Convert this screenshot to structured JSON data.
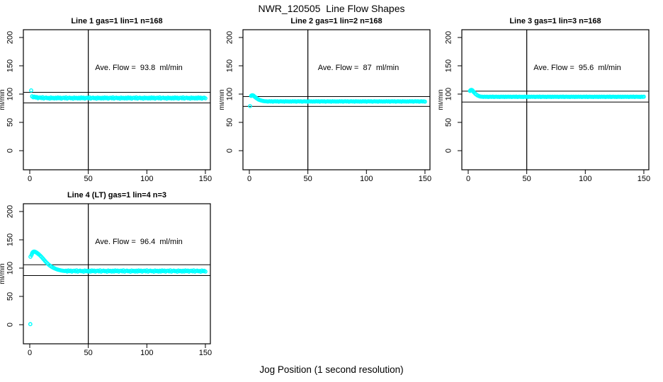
{
  "page": {
    "title": "NWR_120505  Line Flow Shapes",
    "xlabel": "Jog Position (1 second resolution)"
  },
  "colors": {
    "points": "#00ffff",
    "axis": "#000000",
    "background": "#ffffff"
  },
  "axes": {
    "ylabel": "ml/min",
    "x_ticks": [
      0,
      50,
      100,
      150
    ],
    "y_ticks": [
      0,
      50,
      100,
      150,
      200
    ],
    "xlim": [
      0,
      150
    ],
    "vline_x": 50
  },
  "noise_pattern": [
    0.5,
    -0.7,
    1.0,
    -0.2,
    0.8,
    -1.0,
    0.3,
    0.6,
    -0.5,
    1.2,
    -0.9,
    0.1,
    0.7,
    -0.4,
    0.2,
    -1.1,
    0.9,
    -0.3,
    0.4,
    -0.8
  ],
  "chart_data": [
    {
      "type": "scatter",
      "title": "Line 1 gas=1 lin=1 n=168",
      "annotation": "Ave. Flow =  93.8  ml/min",
      "ave_flow": 93.8,
      "ref_lines": {
        "upper": 103.2,
        "lower": 84.4
      },
      "outliers": [
        [
          1.2,
          106.5
        ]
      ],
      "transient": [],
      "steady": {
        "x_from": 2,
        "x_to": 150,
        "step": 1,
        "base": 93,
        "noise_scale": 1.0,
        "decay_amp": 2.5,
        "decay_tau": 4
      }
    },
    {
      "type": "scatter",
      "title": "Line 2 gas=1 lin=2 n=168",
      "annotation": "Ave. Flow =  87  ml/min",
      "ave_flow": 87,
      "ref_lines": {
        "upper": 95.7,
        "lower": 78.3
      },
      "outliers": [
        [
          0.6,
          78.8
        ]
      ],
      "transient": [
        [
          1.5,
          96.8
        ],
        [
          2,
          97.6
        ],
        [
          2.5,
          97.9
        ],
        [
          3,
          97.7
        ],
        [
          3.5,
          97.2
        ],
        [
          4,
          96.4
        ],
        [
          4.5,
          95.5
        ],
        [
          5,
          94.6
        ],
        [
          5.5,
          93.7
        ],
        [
          6,
          92.9
        ],
        [
          7,
          91.5
        ],
        [
          8,
          90.3
        ],
        [
          9,
          89.4
        ],
        [
          10,
          88.7
        ],
        [
          11,
          88.1
        ],
        [
          12,
          87.7
        ],
        [
          13,
          87.4
        ],
        [
          14,
          87.2
        ]
      ],
      "steady": {
        "x_from": 15,
        "x_to": 150,
        "step": 1,
        "base": 87,
        "noise_scale": 0.35,
        "decay_amp": 0,
        "decay_tau": 1
      }
    },
    {
      "type": "scatter",
      "title": "Line 3 gas=1 lin=3 n=168",
      "annotation": "Ave. Flow =  95.6  ml/min",
      "ave_flow": 95.6,
      "ref_lines": {
        "upper": 105.2,
        "lower": 86.0
      },
      "outliers": [],
      "transient": [
        [
          1.5,
          105.5
        ],
        [
          2,
          106.8
        ],
        [
          2.5,
          107.4
        ],
        [
          3,
          107.3
        ],
        [
          3.5,
          106.6
        ],
        [
          4,
          105.5
        ],
        [
          4.5,
          104.2
        ],
        [
          5,
          102.9
        ],
        [
          6,
          100.8
        ],
        [
          7,
          99.0
        ],
        [
          8,
          97.6
        ],
        [
          9,
          96.6
        ],
        [
          10,
          95.9
        ],
        [
          11,
          95.5
        ]
      ],
      "steady": {
        "x_from": 12,
        "x_to": 150,
        "step": 1,
        "base": 95.2,
        "noise_scale": 0.35,
        "decay_amp": 0,
        "decay_tau": 1
      }
    },
    {
      "type": "scatter",
      "title": "Line 4 (LT) gas=1 lin=4 n=3",
      "annotation": "Ave. Flow =  96.4  ml/min",
      "ave_flow": 96.4,
      "ref_lines": {
        "upper": 106.0,
        "lower": 86.8
      },
      "outliers": [
        [
          0.6,
          120
        ],
        [
          0.5,
          1
        ]
      ],
      "transient": [
        [
          1.5,
          123
        ],
        [
          2,
          126
        ],
        [
          2.5,
          127.8
        ],
        [
          3,
          128.8
        ],
        [
          3.5,
          129.2
        ],
        [
          4,
          129.2
        ],
        [
          4.5,
          128.9
        ],
        [
          5,
          128.4
        ],
        [
          5.5,
          127.8
        ],
        [
          6,
          127.1
        ],
        [
          6.5,
          126.4
        ],
        [
          7,
          125.6
        ],
        [
          7.5,
          124.8
        ],
        [
          8,
          123.9
        ],
        [
          9,
          122.0
        ],
        [
          10,
          119.9
        ],
        [
          11,
          117.6
        ],
        [
          12,
          115.2
        ],
        [
          13,
          112.8
        ],
        [
          14,
          110.5
        ],
        [
          15,
          108.4
        ],
        [
          16,
          106.5
        ],
        [
          17,
          104.8
        ],
        [
          18,
          103.3
        ],
        [
          19,
          101.9
        ],
        [
          20,
          100.7
        ],
        [
          21,
          99.7
        ],
        [
          22,
          98.8
        ],
        [
          23,
          98.0
        ],
        [
          24,
          97.3
        ],
        [
          25,
          96.7
        ],
        [
          26,
          96.2
        ],
        [
          27,
          95.8
        ],
        [
          28,
          95.4
        ],
        [
          29,
          95.1
        ],
        [
          30,
          94.9
        ]
      ],
      "steady": {
        "x_from": 31,
        "x_to": 150,
        "step": 1,
        "base": 94.8,
        "noise_scale": 1.1,
        "decay_amp": 0,
        "decay_tau": 1
      }
    }
  ]
}
